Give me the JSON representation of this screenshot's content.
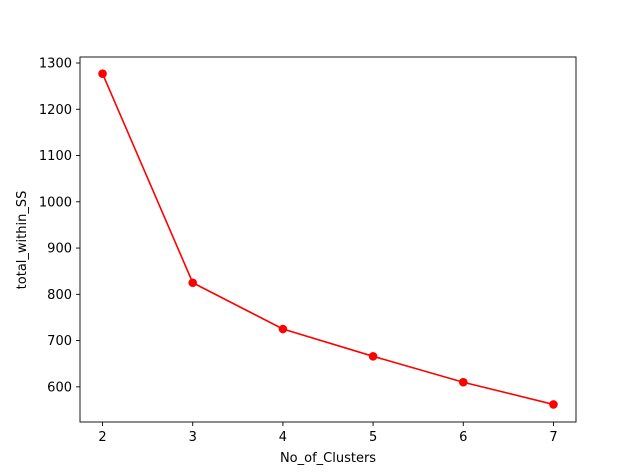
{
  "chart_data": {
    "type": "line",
    "xlabel": "No_of_Clusters",
    "ylabel": "total_within_SS",
    "x": [
      2,
      3,
      4,
      5,
      6,
      7
    ],
    "series": [
      {
        "values": [
          1277,
          825,
          725,
          666,
          610,
          562
        ],
        "color": "#ff0000",
        "marker": "circle"
      }
    ],
    "xlim": [
      1.75,
      7.25
    ],
    "ylim": [
      524,
      1313
    ],
    "xticks": [
      2,
      3,
      4,
      5,
      6,
      7
    ],
    "yticks": [
      600,
      700,
      800,
      900,
      1000,
      1100,
      1200,
      1300
    ],
    "grid": false
  }
}
